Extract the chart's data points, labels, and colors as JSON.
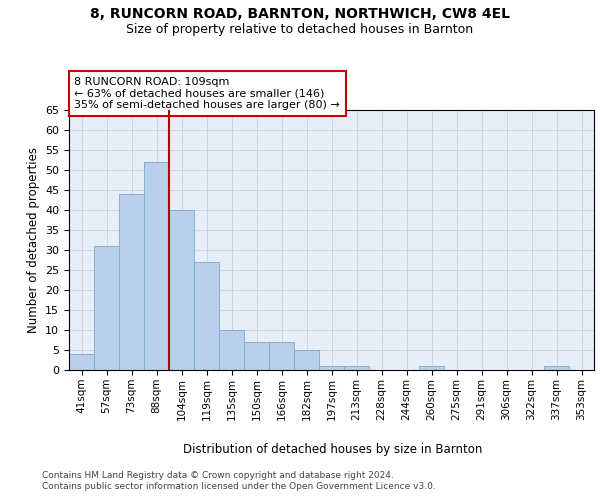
{
  "title_line1": "8, RUNCORN ROAD, BARNTON, NORTHWICH, CW8 4EL",
  "title_line2": "Size of property relative to detached houses in Barnton",
  "xlabel": "Distribution of detached houses by size in Barnton",
  "ylabel": "Number of detached properties",
  "categories": [
    "41sqm",
    "57sqm",
    "73sqm",
    "88sqm",
    "104sqm",
    "119sqm",
    "135sqm",
    "150sqm",
    "166sqm",
    "182sqm",
    "197sqm",
    "213sqm",
    "228sqm",
    "244sqm",
    "260sqm",
    "275sqm",
    "291sqm",
    "306sqm",
    "322sqm",
    "337sqm",
    "353sqm"
  ],
  "values": [
    4,
    31,
    44,
    52,
    40,
    27,
    10,
    7,
    7,
    5,
    1,
    1,
    0,
    0,
    1,
    0,
    0,
    0,
    0,
    1,
    0
  ],
  "bar_color": "#b8d0ea",
  "bar_edge_color": "#7aaace",
  "vline_x_index": 3.5,
  "vline_color": "#bb0000",
  "annotation_text": "8 RUNCORN ROAD: 109sqm\n← 63% of detached houses are smaller (146)\n35% of semi-detached houses are larger (80) →",
  "annotation_box_facecolor": "#ffffff",
  "annotation_box_edgecolor": "#cc0000",
  "ylim_max": 65,
  "ytick_step": 5,
  "grid_color": "#c8d0e0",
  "plot_bg_color": "#e8eef8",
  "footnote1": "Contains HM Land Registry data © Crown copyright and database right 2024.",
  "footnote2": "Contains public sector information licensed under the Open Government Licence v3.0."
}
